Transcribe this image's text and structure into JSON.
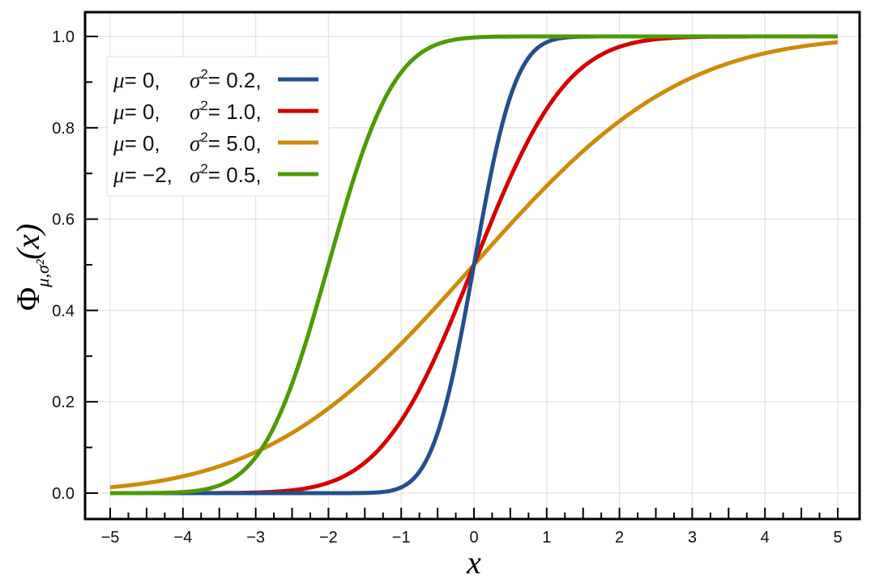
{
  "chart_data": {
    "type": "line",
    "function": "normal cumulative distribution function",
    "xlabel": "x",
    "ylabel": "Φ",
    "ylabel_subscript": "μ,σ²",
    "ylabel_arg": "(x)",
    "xlim": [
      -5,
      5
    ],
    "ylim": [
      0,
      1
    ],
    "xticks": [
      "−5",
      "−4",
      "−3",
      "−2",
      "−1",
      "0",
      "1",
      "2",
      "3",
      "4",
      "5"
    ],
    "yticks": [
      "0.0",
      "0.2",
      "0.4",
      "0.6",
      "0.8",
      "1.0"
    ],
    "grid": true,
    "legend_placement": "top-left",
    "series": [
      {
        "mu": 0,
        "sigma2": 0.2,
        "color": "#234f8c",
        "legend": {
          "mu": "μ",
          "mu_val": "= 0,",
          "sigma": "σ",
          "sup": "2",
          "sigma_val": "= 0.2,"
        }
      },
      {
        "mu": 0,
        "sigma2": 1.0,
        "color": "#d40000",
        "legend": {
          "mu": "μ",
          "mu_val": "= 0,",
          "sigma": "σ",
          "sup": "2",
          "sigma_val": "= 1.0,"
        }
      },
      {
        "mu": 0,
        "sigma2": 5.0,
        "color": "#cc8c0a",
        "legend": {
          "mu": "μ",
          "mu_val": "= 0,",
          "sigma": "σ",
          "sup": "2",
          "sigma_val": "= 5.0,"
        }
      },
      {
        "mu": -2,
        "sigma2": 0.5,
        "color": "#4e9a06",
        "legend": {
          "mu": "μ",
          "mu_val": "= −2,",
          "sigma": "σ",
          "sup": "2",
          "sigma_val": "= 0.5,"
        }
      }
    ]
  }
}
